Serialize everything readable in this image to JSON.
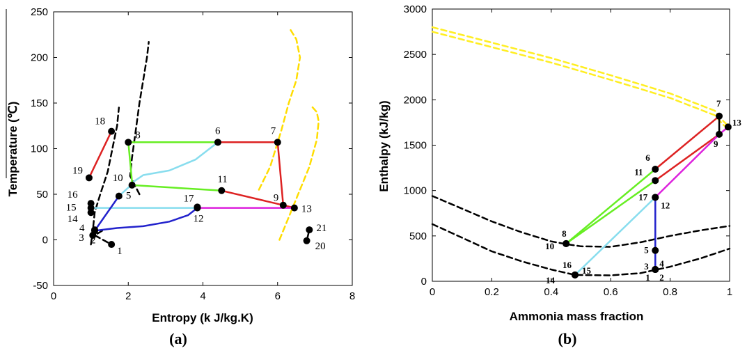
{
  "chart_data": [
    {
      "type": "line",
      "caption": "(a)",
      "xlabel": "Entropy (k J/kg.K)",
      "ylabel": "Temperature (℃)",
      "xlim": [
        0,
        8
      ],
      "ylim": [
        -50,
        250
      ],
      "xticks": [
        "0",
        "2",
        "4",
        "6",
        "8"
      ],
      "yticks": [
        "-50",
        "0",
        "50",
        "100",
        "150",
        "200",
        "250"
      ],
      "grid": false,
      "series": [
        {
          "color": "#000000",
          "dash": true,
          "points": [
            [
              1.0,
              -5
            ],
            [
              1.05,
              10
            ],
            [
              1.1,
              30
            ],
            [
              1.25,
              50
            ],
            [
              1.45,
              75
            ],
            [
              1.6,
              105
            ],
            [
              1.7,
              125
            ],
            [
              1.75,
              145
            ]
          ]
        },
        {
          "color": "#000000",
          "dash": true,
          "points": [
            [
              1.3,
              10
            ],
            [
              1.1,
              5
            ],
            [
              1.55,
              -5
            ]
          ]
        },
        {
          "color": "#000000",
          "dash": true,
          "points": [
            [
              2.3,
              50
            ],
            [
              2.05,
              70
            ],
            [
              2.1,
              90
            ],
            [
              2.2,
              120
            ],
            [
              2.3,
              150
            ],
            [
              2.4,
              175
            ],
            [
              2.5,
              200
            ],
            [
              2.55,
              217
            ]
          ]
        },
        {
          "color": "#ffdd00",
          "dash": true,
          "points": [
            [
              5.5,
              55
            ],
            [
              5.8,
              80
            ],
            [
              6.1,
              120
            ],
            [
              6.3,
              150
            ],
            [
              6.5,
              175
            ],
            [
              6.6,
              200
            ],
            [
              6.5,
              220
            ],
            [
              6.35,
              230
            ]
          ]
        },
        {
          "color": "#ffdd00",
          "dash": true,
          "points": [
            [
              6.05,
              0
            ],
            [
              6.3,
              25
            ],
            [
              6.6,
              55
            ],
            [
              6.85,
              80
            ],
            [
              7.05,
              110
            ],
            [
              7.1,
              130
            ],
            [
              7.05,
              140
            ],
            [
              6.9,
              147
            ]
          ]
        },
        {
          "color": "#dd2222",
          "dash": false,
          "points": [
            [
              0.95,
              68
            ],
            [
              1.55,
              119
            ]
          ]
        },
        {
          "color": "#66ee22",
          "dash": false,
          "points": [
            [
              2.0,
              107
            ],
            [
              4.4,
              107
            ]
          ]
        },
        {
          "color": "#dd2222",
          "dash": false,
          "points": [
            [
              4.4,
              107
            ],
            [
              6.0,
              107
            ],
            [
              6.15,
              38
            ]
          ]
        },
        {
          "color": "#88ddee",
          "dash": false,
          "points": [
            [
              4.4,
              107
            ],
            [
              3.8,
              88
            ],
            [
              3.1,
              76
            ],
            [
              2.4,
              71
            ],
            [
              2.15,
              64
            ]
          ]
        },
        {
          "color": "#66ee22",
          "dash": false,
          "points": [
            [
              2.0,
              107
            ],
            [
              2.1,
              64
            ],
            [
              2.1,
              60
            ],
            [
              4.5,
              54
            ]
          ]
        },
        {
          "color": "#dd2222",
          "dash": false,
          "points": [
            [
              4.5,
              54
            ],
            [
              6.15,
              38
            ],
            [
              6.45,
              35
            ]
          ]
        },
        {
          "color": "#88ddee",
          "dash": false,
          "points": [
            [
              1.0,
              35
            ],
            [
              3.85,
              35
            ]
          ]
        },
        {
          "color": "#88ddee",
          "dash": false,
          "points": [
            [
              1.75,
              48
            ],
            [
              2.05,
              59
            ]
          ]
        },
        {
          "color": "#dd22dd",
          "dash": false,
          "points": [
            [
              3.85,
              35
            ],
            [
              6.45,
              35
            ]
          ]
        },
        {
          "color": "#2222cc",
          "dash": false,
          "points": [
            [
              1.1,
              10
            ],
            [
              1.7,
              13
            ],
            [
              2.4,
              15
            ],
            [
              3.1,
              20
            ],
            [
              3.6,
              27
            ],
            [
              3.85,
              35
            ]
          ]
        },
        {
          "color": "#2222cc",
          "dash": false,
          "points": [
            [
              1.1,
              10
            ],
            [
              1.75,
              48
            ]
          ]
        },
        {
          "color": "#000000",
          "dash": false,
          "points": [
            [
              6.78,
              -1
            ],
            [
              6.85,
              11
            ]
          ]
        }
      ],
      "points": [
        {
          "label": "1",
          "x": 1.55,
          "y": -5
        },
        {
          "label": "2",
          "x": 1.1,
          "y": 10
        },
        {
          "label": "3",
          "x": 1.05,
          "y": 5
        },
        {
          "label": "4",
          "x": 1.1,
          "y": 11
        },
        {
          "label": "5",
          "x": 1.75,
          "y": 48
        },
        {
          "label": "6",
          "x": 4.4,
          "y": 107
        },
        {
          "label": "7",
          "x": 6.0,
          "y": 107
        },
        {
          "label": "8",
          "x": 2.0,
          "y": 107
        },
        {
          "label": "9",
          "x": 6.15,
          "y": 38
        },
        {
          "label": "10",
          "x": 2.1,
          "y": 60
        },
        {
          "label": "11",
          "x": 4.5,
          "y": 54
        },
        {
          "label": "12",
          "x": 3.85,
          "y": 35
        },
        {
          "label": "13",
          "x": 6.45,
          "y": 35
        },
        {
          "label": "14",
          "x": 1.0,
          "y": 30
        },
        {
          "label": "15",
          "x": 1.0,
          "y": 35
        },
        {
          "label": "16",
          "x": 1.0,
          "y": 40
        },
        {
          "label": "17",
          "x": 3.85,
          "y": 36
        },
        {
          "label": "18",
          "x": 1.55,
          "y": 119
        },
        {
          "label": "19",
          "x": 0.95,
          "y": 68
        },
        {
          "label": "20",
          "x": 6.78,
          "y": -1
        },
        {
          "label": "21",
          "x": 6.85,
          "y": 11
        }
      ]
    },
    {
      "type": "line",
      "caption": "(b)",
      "xlabel": "Ammonia mass fraction",
      "ylabel": "Enthalpy (kJ/kg)",
      "xlim": [
        0,
        1
      ],
      "ylim": [
        0,
        3000
      ],
      "xticks": [
        "0",
        "0.2",
        "0.4",
        "0.6",
        "0.8",
        "1"
      ],
      "yticks": [
        "0",
        "500",
        "1000",
        "1500",
        "2000",
        "2500",
        "3000"
      ],
      "grid": false,
      "series": [
        {
          "color": "#ffee22",
          "dash": true,
          "points": [
            [
              0,
              2800
            ],
            [
              0.2,
              2630
            ],
            [
              0.4,
              2460
            ],
            [
              0.6,
              2270
            ],
            [
              0.8,
              2070
            ],
            [
              0.95,
              1880
            ],
            [
              0.98,
              1760
            ],
            [
              1.0,
              1700
            ]
          ]
        },
        {
          "color": "#ffee22",
          "dash": true,
          "points": [
            [
              0,
              2750
            ],
            [
              0.2,
              2580
            ],
            [
              0.4,
              2410
            ],
            [
              0.6,
              2220
            ],
            [
              0.8,
              2020
            ],
            [
              0.95,
              1830
            ],
            [
              0.98,
              1720
            ],
            [
              1.0,
              1680
            ]
          ]
        },
        {
          "color": "#000000",
          "dash": true,
          "points": [
            [
              0,
              940
            ],
            [
              0.1,
              800
            ],
            [
              0.2,
              660
            ],
            [
              0.3,
              540
            ],
            [
              0.4,
              440
            ],
            [
              0.45,
              410
            ],
            [
              0.5,
              385
            ],
            [
              0.6,
              380
            ],
            [
              0.7,
              430
            ],
            [
              0.8,
              500
            ],
            [
              0.9,
              560
            ],
            [
              1.0,
              610
            ]
          ]
        },
        {
          "color": "#000000",
          "dash": true,
          "points": [
            [
              0,
              630
            ],
            [
              0.1,
              480
            ],
            [
              0.2,
              330
            ],
            [
              0.3,
              220
            ],
            [
              0.4,
              130
            ],
            [
              0.48,
              70
            ],
            [
              0.6,
              65
            ],
            [
              0.7,
              90
            ],
            [
              0.8,
              160
            ],
            [
              0.9,
              250
            ],
            [
              1.0,
              360
            ]
          ]
        },
        {
          "color": "#66ee22",
          "dash": false,
          "points": [
            [
              0.45,
              415
            ],
            [
              0.75,
              1235
            ]
          ]
        },
        {
          "color": "#66ee22",
          "dash": false,
          "points": [
            [
              0.45,
              415
            ],
            [
              0.75,
              1110
            ]
          ]
        },
        {
          "color": "#88ddee",
          "dash": false,
          "points": [
            [
              0.48,
              70
            ],
            [
              0.75,
              925
            ]
          ]
        },
        {
          "color": "#dd2222",
          "dash": false,
          "points": [
            [
              0.75,
              1235
            ],
            [
              0.965,
              1820
            ]
          ]
        },
        {
          "color": "#dd2222",
          "dash": false,
          "points": [
            [
              0.75,
              1110
            ],
            [
              0.965,
              1620
            ]
          ]
        },
        {
          "color": "#dd22dd",
          "dash": false,
          "points": [
            [
              0.75,
              925
            ],
            [
              0.965,
              1620
            ],
            [
              0.995,
              1700
            ]
          ]
        },
        {
          "color": "#2222cc",
          "dash": false,
          "points": [
            [
              0.75,
              130
            ],
            [
              0.75,
              925
            ]
          ]
        },
        {
          "color": "#000000",
          "dash": false,
          "points": [
            [
              0.965,
              1820
            ],
            [
              0.965,
              1620
            ]
          ]
        }
      ],
      "points": [
        {
          "label": "1",
          "x": 0.75,
          "y": 130
        },
        {
          "label": "2",
          "x": 0.75,
          "y": 130
        },
        {
          "label": "3",
          "x": 0.75,
          "y": 130
        },
        {
          "label": "4",
          "x": 0.75,
          "y": 130
        },
        {
          "label": "5",
          "x": 0.75,
          "y": 340
        },
        {
          "label": "6",
          "x": 0.75,
          "y": 1235
        },
        {
          "label": "7",
          "x": 0.965,
          "y": 1820
        },
        {
          "label": "8",
          "x": 0.45,
          "y": 415
        },
        {
          "label": "9",
          "x": 0.965,
          "y": 1620
        },
        {
          "label": "10",
          "x": 0.45,
          "y": 415
        },
        {
          "label": "11",
          "x": 0.75,
          "y": 1110
        },
        {
          "label": "12",
          "x": 0.75,
          "y": 925
        },
        {
          "label": "13",
          "x": 0.995,
          "y": 1700
        },
        {
          "label": "14",
          "x": 0.48,
          "y": 70
        },
        {
          "label": "15",
          "x": 0.48,
          "y": 70
        },
        {
          "label": "16",
          "x": 0.48,
          "y": 70
        },
        {
          "label": "17",
          "x": 0.75,
          "y": 925
        }
      ]
    }
  ]
}
